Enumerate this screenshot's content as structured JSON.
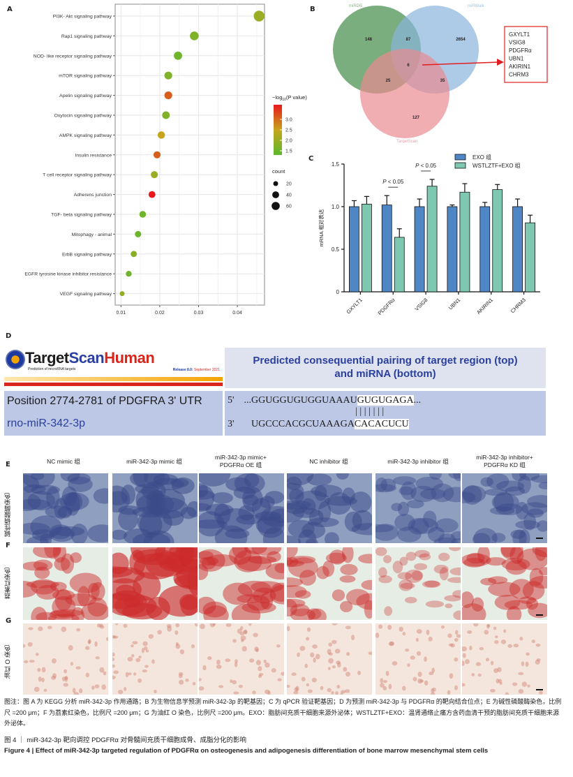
{
  "panels": {
    "A": "A",
    "B": "B",
    "C": "C",
    "D": "D",
    "E": "E",
    "F": "F",
    "G": "G"
  },
  "chart_data": [
    {
      "id": "A",
      "type": "scatter",
      "subtype": "bubble",
      "title": "",
      "xlabel": "",
      "ylabel": "",
      "xlim": [
        0.0085,
        0.047
      ],
      "xticks": [
        0.01,
        0.02,
        0.03,
        0.04
      ],
      "xtick_labels": [
        "0.01",
        "0.02",
        "0.03",
        "0.04"
      ],
      "grid": true,
      "categories": [
        "PI3K- Akt signaling pathway",
        "Rap1 signaling pathway",
        "NOD- like receptor signaling pathway",
        "mTOR signaling pathway",
        "Apelin signaling pathway",
        "Oxytocin signaling pathway",
        "AMPK signaling pathway",
        "Insulin resistance",
        "T cell receptor signaling pathway",
        "Adherens junction",
        "TGF- beta signaling pathway",
        "Mitophagy -  animal",
        "ErbB signaling pathway",
        "EGFR tyrosine kinase inhibitor resistance",
        "VEGF signaling pathway"
      ],
      "x": [
        0.0456,
        0.0289,
        0.0247,
        0.0222,
        0.0222,
        0.0216,
        0.0204,
        0.0193,
        0.0186,
        0.018,
        0.0156,
        0.0144,
        0.0133,
        0.012,
        0.0103
      ],
      "neg_log10_p": [
        2.0,
        1.7,
        1.5,
        1.7,
        3.1,
        1.7,
        2.5,
        3.1,
        2.0,
        3.7,
        1.5,
        1.5,
        1.8,
        1.5,
        1.9
      ],
      "count": [
        80,
        60,
        55,
        50,
        50,
        48,
        45,
        43,
        42,
        40,
        38,
        35,
        33,
        30,
        20
      ],
      "legend": {
        "color_title_prefix": "−log",
        "color_title_sub": "10",
        "color_title_suffix": "(P value)",
        "color_ticks": [
          "3.0",
          "2.5",
          "2.0",
          "1.5"
        ],
        "color_range": [
          1.3,
          3.7
        ],
        "color_low": "#5cb82e",
        "color_mid": "#c6a51c",
        "color_high": "#e8191d",
        "size_title": "count",
        "size_entries": [
          "20",
          "40",
          "60"
        ],
        "placement": "right"
      }
    },
    {
      "id": "B",
      "type": "venn",
      "sets": [
        "miRDB",
        "miRWalk",
        "TargetScan"
      ],
      "set_colors": [
        "#5a9a5e",
        "#8ab4dc",
        "#ea8a92"
      ],
      "regions": {
        "miRDB_only": "148",
        "miRDB_miRWalk": "87",
        "miRWalk_only": "2654",
        "all_three": "6",
        "miRDB_TargetScan": "25",
        "miRWalk_TargetScan": "35",
        "TargetScan_only": "127"
      },
      "callout_genes": [
        "GXYLT1",
        "VSIG8",
        "PDGFRα",
        "UBN1",
        "AKIRIN1",
        "CHRM3"
      ],
      "callout_color": "#e02020"
    },
    {
      "id": "C",
      "type": "bar",
      "categories": [
        "GXYLT1",
        "PDGFRα",
        "VSIG8",
        "UBN1",
        "AKIRIN1",
        "CHRM3"
      ],
      "series": [
        {
          "name": "EXO 组",
          "color": "#4f86c6",
          "values": [
            1.0,
            1.02,
            1.0,
            1.0,
            1.0,
            1.0
          ],
          "errors": [
            0.07,
            0.11,
            0.09,
            0.02,
            0.05,
            0.09
          ]
        },
        {
          "name": "WSTLZTF+EXO 组",
          "color": "#7ec8b2",
          "values": [
            1.03,
            0.64,
            1.24,
            1.17,
            1.2,
            0.81
          ],
          "errors": [
            0.09,
            0.1,
            0.08,
            0.1,
            0.06,
            0.09
          ]
        }
      ],
      "ylabel": "mRNA 相对表达",
      "xlabel": "",
      "ylim": [
        0,
        1.5
      ],
      "yticks": [
        "0",
        "0.5",
        "1.0",
        "1.5"
      ],
      "annotations": [
        {
          "category": "PDGFRα",
          "text_italic": "P",
          "text_rest": " < 0.05"
        },
        {
          "category": "VSIG8",
          "text_italic": "P",
          "text_rest": " < 0.05"
        }
      ],
      "legend_placement": "top-right"
    }
  ],
  "targetscan": {
    "logo_target": "Target",
    "logo_scan": "Scan",
    "logo_human": "Human",
    "logo_subtitle": "Prediction of microRNA targets",
    "release_prefix": "Release 8.0: ",
    "release_date": "September 2021",
    "header_line1": "Predicted consequential pairing of target region (top)",
    "header_line2": "and miRNA (bottom)",
    "position_text": "Position 2774-2781 of PDGFRA 3' UTR",
    "mirna_name": "rno-miR-342-3p",
    "top_prime": "5'",
    "top_seq_pre": "...GGUGGUGUGGUAAAU",
    "top_seq_seed": "GUGUGAGA",
    "top_seq_post": "...",
    "pairing": "|||||||",
    "bottom_prime": "3'",
    "bottom_seq_pre": "UGCCCACGCUAAAGA",
    "bottom_seq_seed": "CACACUCU"
  },
  "groups": [
    {
      "line1": "NC mimic 组",
      "line2": ""
    },
    {
      "line1": "miR-342-3p mimic 组",
      "line2": ""
    },
    {
      "line1": "miR-342-3p mimic+",
      "line2": "PDGFRα OE 组"
    },
    {
      "line1": "NC inhibitor 组",
      "line2": ""
    },
    {
      "line1": "miR-342-3p inhibitor 组",
      "line2": ""
    },
    {
      "line1": "miR-342-3p inhibitor+",
      "line2": "PDGFRα KD 组"
    }
  ],
  "row_labels": {
    "E": "碱性磷酸酶染色",
    "F": "茘素红染色",
    "G": "油红 O 染色"
  },
  "stain_colors": {
    "E": {
      "bg": "#8f9fbf",
      "spot": "#3a4a8a"
    },
    "F": {
      "bg": "#e6ede4",
      "spot": "#cc2a2a"
    },
    "G": {
      "bg": "#f4e6dc",
      "spot": "#d08070"
    }
  },
  "scale_text": "200 μm",
  "caption": {
    "note": "图注：图 A 为 KEGG 分析 miR-342-3p 作用通路；B 为生物信息学预测 miR-342-3p 的靶基因；C 为 qPCR 验证靶基因；D 为预测 miR-342-3p 与 PDGFRα 的靶向结合位点；E 为碱性磷酸酶染色，比例尺 =200 μm；F 为茘素红染色，比例尺 =200 μm；G 为油红 O 染色，比例尺 =200 μm。EXO：脂肪间充质干细胞来源外泌体；WSTLZTF+EXO：温肾通络止痛方含药血清干预的脂肪间充质干细胞来源外泌体。",
    "title_cn": "图 4 ｜ miR-342-3p 靶向调控 PDGFRα 对骨髓间充质干细胞成骨、成脂分化的影响",
    "title_en": "Figure 4  |  Effect of miR-342-3p targeted regulation of PDGFRα on osteogenesis and adipogenesis differentiation of bone marrow mesenchymal stem cells"
  }
}
